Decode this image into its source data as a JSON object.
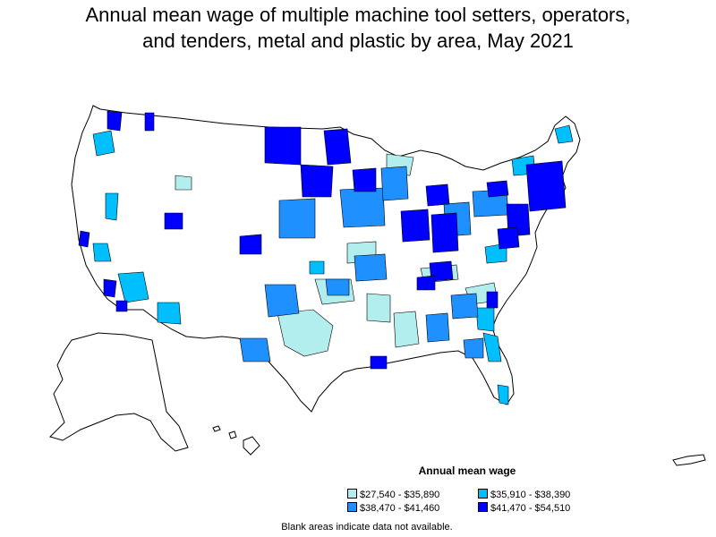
{
  "title_line1": "Annual mean wage of multiple machine tool setters, operators,",
  "title_line2": "and tenders, metal and plastic by area, May 2021",
  "legend": {
    "title": "Annual mean wage",
    "items": [
      {
        "label": "$27,540 - $35,890",
        "color": "#b2eeee"
      },
      {
        "label": "$35,910 - $38,390",
        "color": "#00bfff"
      },
      {
        "label": "$38,470 - $41,460",
        "color": "#1e90ff"
      },
      {
        "label": "$41,470 - $54,510",
        "color": "#0000ff"
      }
    ]
  },
  "footnote": "Blank areas indicate data not available.",
  "colors": {
    "no_data": "#ffffff",
    "border": "#000000"
  }
}
